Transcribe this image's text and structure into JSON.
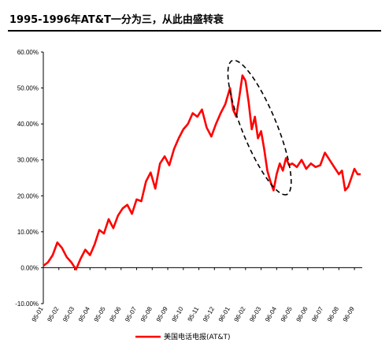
{
  "title": "1995-1996年AT&T一分为三，从此由盛转衰",
  "chart_data": {
    "type": "line",
    "title": "",
    "xlabel": "",
    "ylabel": "",
    "ylim": [
      -10,
      60
    ],
    "y_ticks": [
      "-10.00%",
      "0.00%",
      "10.00%",
      "20.00%",
      "30.00%",
      "40.00%",
      "50.00%",
      "60.00%"
    ],
    "x_tick_labels": [
      "95-01",
      "95-02",
      "95-03",
      "95-04",
      "95-05",
      "95-06",
      "95-07",
      "95-08",
      "95-09",
      "95-10",
      "95-11",
      "95-12",
      "96-01",
      "96-02",
      "96-03",
      "96-04",
      "96-05",
      "96-06",
      "96-07",
      "96-08",
      "96-09"
    ],
    "grid": false,
    "legend_position": "bottom",
    "series": [
      {
        "name": "美国电话电报(AT&T)",
        "color": "#ff0000",
        "x": [
          0,
          0.3,
          0.6,
          0.9,
          1.2,
          1.5,
          1.8,
          2.1,
          2.4,
          2.7,
          3.0,
          3.3,
          3.6,
          3.9,
          4.2,
          4.5,
          4.8,
          5.1,
          5.4,
          5.7,
          6.0,
          6.3,
          6.6,
          6.9,
          7.2,
          7.5,
          7.8,
          8.1,
          8.4,
          8.7,
          9.0,
          9.3,
          9.6,
          9.9,
          10.2,
          10.5,
          10.8,
          11.1,
          11.4,
          11.7,
          12.0,
          12.2,
          12.4,
          12.6,
          12.8,
          13.0,
          13.2,
          13.4,
          13.6,
          13.8,
          14.0,
          14.2,
          14.4,
          14.6,
          14.8,
          15.0,
          15.2,
          15.4,
          15.6,
          15.8,
          16.0,
          16.3,
          16.6,
          16.9,
          17.2,
          17.5,
          17.8,
          18.1,
          18.4,
          18.7,
          19.0,
          19.2,
          19.4,
          19.6,
          19.8,
          20.0,
          20.2,
          20.4
        ],
        "values": [
          0.5,
          1.5,
          3.5,
          7.0,
          5.5,
          3.0,
          1.5,
          -0.5,
          2.5,
          5.0,
          3.5,
          6.5,
          10.5,
          9.5,
          13.5,
          11.0,
          14.5,
          16.5,
          17.5,
          15.0,
          19.0,
          18.5,
          24.0,
          26.5,
          22.0,
          29.0,
          31.0,
          28.5,
          33.0,
          36.0,
          38.5,
          40.0,
          43.0,
          42.0,
          44.0,
          39.0,
          36.5,
          40.0,
          43.0,
          45.5,
          50.0,
          44.0,
          42.0,
          47.5,
          53.5,
          52.0,
          46.0,
          38.5,
          42.0,
          36.0,
          38.0,
          33.0,
          27.0,
          24.0,
          21.5,
          26.0,
          29.0,
          27.0,
          30.5,
          28.5,
          29.0,
          28.0,
          30.0,
          27.5,
          29.0,
          28.0,
          28.5,
          32.0,
          30.0,
          28.0,
          26.0,
          27.0,
          21.5,
          22.5,
          25.0,
          27.5,
          26.0,
          26.0
        ]
      }
    ]
  }
}
